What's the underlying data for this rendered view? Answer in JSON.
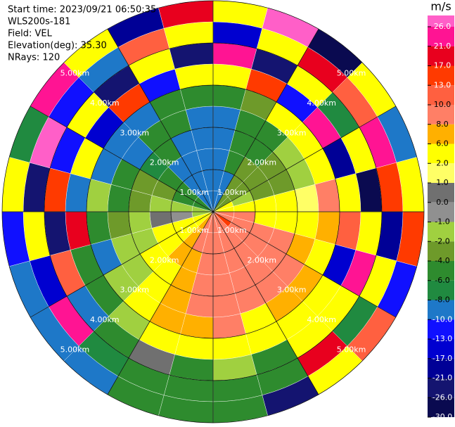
{
  "chart_data": {
    "type": "ppi",
    "header": [
      "Start time: 2023/09/21 06:50:35",
      "WLS200s-181",
      "Field: VEL",
      "Elevation(deg): 35.30",
      "NRays: 120"
    ],
    "rlim": [
      0,
      5
    ],
    "range_bins": [
      0,
      0.5,
      1,
      1.5,
      2,
      2.5,
      3,
      3.5,
      4,
      4.5,
      5
    ],
    "rings": [
      {
        "value": 1,
        "label": "1.00km"
      },
      {
        "value": 2,
        "label": "2.00km"
      },
      {
        "value": 3,
        "label": "3.00km"
      },
      {
        "value": 4,
        "label": "4.00km"
      },
      {
        "value": 5,
        "label": "5.00km"
      }
    ],
    "values": [
      [
        -9,
        -9,
        -9,
        -9,
        -8.5,
        -5,
        3,
        22,
        -15,
        4
      ],
      [
        -9,
        -9,
        -5,
        -5,
        -5,
        -3,
        15,
        -24,
        3,
        27
      ],
      [
        -3,
        -3,
        -3,
        -5,
        -5,
        4,
        -12,
        3,
        19,
        -28
      ],
      [
        -3,
        -3,
        -3,
        -3,
        -1.5,
        3,
        25,
        -7,
        11,
        3
      ],
      [
        3,
        -1.5,
        -3,
        -3,
        -1.5,
        3,
        -18,
        5,
        23,
        -9
      ],
      [
        4,
        4,
        4,
        3,
        1.5,
        9,
        4,
        -27,
        14,
        2
      ],
      [
        9,
        9,
        4,
        4,
        3,
        7,
        12,
        3,
        -20,
        16
      ],
      [
        9,
        9,
        9,
        9,
        7,
        4,
        -14,
        23,
        4,
        -11
      ],
      [
        15,
        9,
        9,
        9,
        9,
        7,
        4,
        3,
        -8,
        12
      ],
      [
        9,
        9,
        9,
        9,
        9,
        7,
        4,
        4,
        18,
        3
      ],
      [
        9,
        9,
        9,
        9,
        9,
        4,
        4,
        -5,
        -5,
        -25
      ],
      [
        9,
        9,
        9,
        9,
        9,
        9,
        4,
        -1.5,
        -5,
        -5
      ],
      [
        9,
        9,
        9,
        9,
        9,
        7,
        4,
        -5,
        -5,
        -5
      ],
      [
        9,
        9,
        7,
        7,
        7,
        7,
        4,
        0.5,
        -5,
        -5
      ],
      [
        7,
        7,
        7,
        4,
        4,
        3,
        -1.5,
        -5,
        -7,
        -9
      ],
      [
        4,
        4,
        4,
        3,
        -1.5,
        -1.5,
        -5,
        -9,
        22,
        -9
      ],
      [
        3,
        4,
        3,
        -1.5,
        -1.5,
        -9,
        -5,
        11,
        -16,
        -9
      ],
      [
        -1.5,
        -0.5,
        0.5,
        -1.5,
        -3,
        -5,
        19,
        -26,
        4,
        -12
      ],
      [
        -1.5,
        -1.5,
        -1.5,
        -3,
        -5,
        -1.5,
        -9,
        14,
        -22,
        3
      ],
      [
        -5,
        -5,
        -3,
        -3,
        -5,
        -9,
        3,
        -13,
        27,
        -7
      ],
      [
        -5,
        -5,
        -5,
        -7,
        -9,
        -9,
        -17,
        4,
        -11,
        23
      ],
      [
        -9,
        -9,
        -9,
        -5,
        -5,
        -9,
        15,
        -24,
        -9,
        3
      ],
      [
        -9,
        -9,
        -9,
        -9,
        -5,
        -5,
        -11,
        4,
        12,
        -19
      ],
      [
        -9,
        -9,
        -9,
        -9,
        -9,
        -5,
        3,
        -25,
        4,
        18
      ]
    ],
    "colorbar": {
      "label": "m/s",
      "ticks": [
        {
          "value": 26,
          "label": "26.0"
        },
        {
          "value": 21,
          "label": "21.0"
        },
        {
          "value": 17,
          "label": "17.0"
        },
        {
          "value": 13,
          "label": "13.0"
        },
        {
          "value": 10,
          "label": "10.0"
        },
        {
          "value": 8,
          "label": "8.0"
        },
        {
          "value": 6,
          "label": "6.0"
        },
        {
          "value": 2,
          "label": "2.0"
        },
        {
          "value": 1,
          "label": "1.0"
        },
        {
          "value": 0,
          "label": "0.0"
        },
        {
          "value": -1,
          "label": "-1.0"
        },
        {
          "value": -2,
          "label": "-2.0"
        },
        {
          "value": -4,
          "label": "-4.0"
        },
        {
          "value": -6,
          "label": "-6.0"
        },
        {
          "value": -8,
          "label": "-8.0"
        },
        {
          "value": -10,
          "label": "-10.0"
        },
        {
          "value": -13,
          "label": "-13.0"
        },
        {
          "value": -17,
          "label": "-17.0"
        },
        {
          "value": -21,
          "label": "-21.0"
        },
        {
          "value": -26,
          "label": "-26.0"
        },
        {
          "value": -30,
          "label": "-30.0"
        }
      ],
      "colors": [
        "#ff5fc8",
        "#ff1493",
        "#e8001e",
        "#ff3a00",
        "#ff6040",
        "#ff7f66",
        "#ffb000",
        "#ffff00",
        "#ffff66",
        "#707070",
        "#909090",
        "#a0d040",
        "#6e9a2a",
        "#2e8b2e",
        "#208a40",
        "#1e78c8",
        "#1010ff",
        "#0000d0",
        "#000096",
        "#141470",
        "#0a0a50"
      ]
    }
  }
}
